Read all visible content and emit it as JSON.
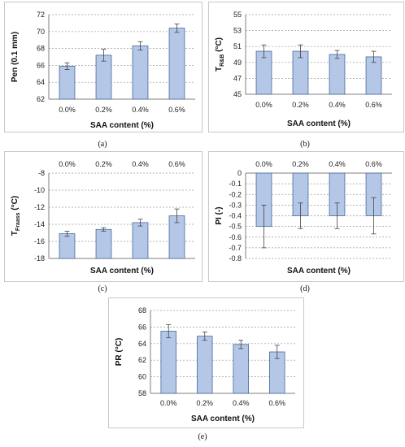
{
  "chart_data": [
    {
      "id": "a",
      "type": "bar",
      "panel_label": "(a)",
      "categories": [
        "0.0%",
        "0.2%",
        "0.4%",
        "0.6%"
      ],
      "values": [
        65.9,
        67.2,
        68.3,
        70.4
      ],
      "errors": [
        0.4,
        0.7,
        0.5,
        0.5
      ],
      "xlabel": "SAA content (%)",
      "ylabel": "Pen (0.1 mm)",
      "ylabel_sub": "",
      "ylim": [
        62,
        72
      ],
      "yticks": [
        62,
        64,
        66,
        68,
        70,
        72
      ],
      "tick_labels_y": [
        "62",
        "64",
        "66",
        "68",
        "70",
        "72"
      ],
      "grid": true
    },
    {
      "id": "b",
      "type": "bar",
      "panel_label": "(b)",
      "categories": [
        "0.0%",
        "0.2%",
        "0.4%",
        "0.6%"
      ],
      "values": [
        50.4,
        50.4,
        50.0,
        49.7
      ],
      "errors": [
        0.8,
        0.8,
        0.5,
        0.7
      ],
      "xlabel": "SAA content (%)",
      "ylabel": "T",
      "ylabel_sub": "R&B",
      "ylabel_suffix": " (°C)",
      "ylim": [
        45,
        55
      ],
      "yticks": [
        45,
        47,
        49,
        51,
        53,
        55
      ],
      "tick_labels_y": [
        "45",
        "47",
        "49",
        "51",
        "53",
        "55"
      ],
      "grid": true
    },
    {
      "id": "c",
      "type": "bar",
      "panel_label": "(c)",
      "categories": [
        "0.0%",
        "0.2%",
        "0.4%",
        "0.6%"
      ],
      "values": [
        -15.1,
        -14.6,
        -13.8,
        -13.0
      ],
      "errors": [
        0.3,
        0.2,
        0.4,
        0.8
      ],
      "xlabel": "SAA content (%)",
      "ylabel": "T",
      "ylabel_sub": "Fraass",
      "ylabel_suffix": " (°C)",
      "ylim": [
        -18,
        -8
      ],
      "yticks": [
        -18,
        -16,
        -14,
        -12,
        -10,
        -8
      ],
      "tick_labels_y": [
        "-18",
        "-16",
        "-14",
        "-12",
        "-10",
        "-8"
      ],
      "grid": true
    },
    {
      "id": "d",
      "type": "bar",
      "panel_label": "(d)",
      "categories": [
        "0.0%",
        "0.2%",
        "0.4%",
        "0.6%"
      ],
      "values": [
        -0.5,
        -0.4,
        -0.4,
        -0.4
      ],
      "errors": [
        0.2,
        0.12,
        0.12,
        0.17
      ],
      "xlabel": "SAA content (%)",
      "ylabel": "PI (-)",
      "ylabel_sub": "",
      "ylim": [
        -0.8,
        0
      ],
      "yticks": [
        -0.8,
        -0.7,
        -0.6,
        -0.5,
        -0.4,
        -0.3,
        -0.2,
        -0.1,
        0
      ],
      "tick_labels_y": [
        "-0.8",
        "-0.7",
        "-0.6",
        "-0.5",
        "-0.4",
        "-0.3",
        "-0.2",
        "-0.1",
        "0"
      ],
      "grid": true
    },
    {
      "id": "e",
      "type": "bar",
      "panel_label": "(e)",
      "categories": [
        "0.0%",
        "0.2%",
        "0.4%",
        "0.6%"
      ],
      "values": [
        65.5,
        64.9,
        63.9,
        63.0
      ],
      "errors": [
        0.8,
        0.5,
        0.5,
        0.8
      ],
      "xlabel": "SAA content (%)",
      "ylabel": "PR (°C)",
      "ylabel_sub": "",
      "ylim": [
        58,
        68
      ],
      "yticks": [
        58,
        60,
        62,
        64,
        66,
        68
      ],
      "tick_labels_y": [
        "58",
        "60",
        "62",
        "64",
        "66",
        "68"
      ],
      "grid": true
    }
  ],
  "colors": {
    "bar_fill": "#b4c7e7",
    "bar_stroke": "#4a6a9a",
    "grid": "#9a9a9a",
    "axis": "#7f7f7f",
    "frame": "#c8c8c8",
    "error": "#444444"
  }
}
